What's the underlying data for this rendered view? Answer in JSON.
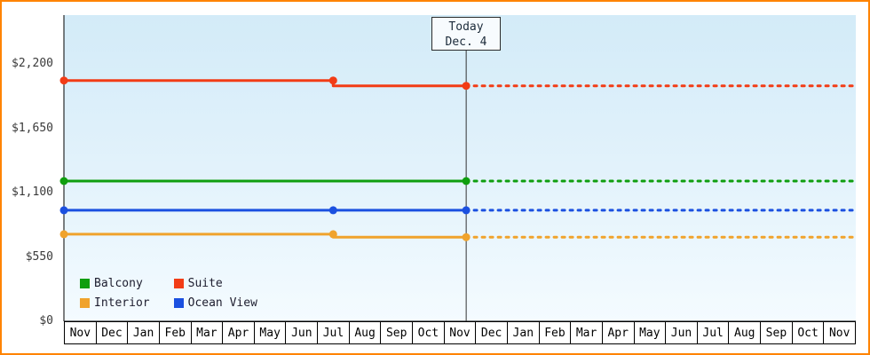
{
  "frame": {
    "border_color": "#ff8300",
    "background": "#ffffff"
  },
  "chart_data": {
    "type": "line",
    "title": "",
    "xlabel": "",
    "ylabel": "",
    "grid": false,
    "legend_position": "bottom-left",
    "x_categories": [
      "Nov",
      "Dec",
      "Jan",
      "Feb",
      "Mar",
      "Apr",
      "May",
      "Jun",
      "Jul",
      "Aug",
      "Sep",
      "Oct",
      "Nov",
      "Dec",
      "Jan",
      "Feb",
      "Mar",
      "Apr",
      "May",
      "Jun",
      "Jul",
      "Aug",
      "Sep",
      "Oct",
      "Nov"
    ],
    "ylim": [
      0,
      2620
    ],
    "y_ticks": [
      {
        "value": 2200,
        "label": "$2,200"
      },
      {
        "value": 1650,
        "label": "$1,650"
      },
      {
        "value": 1100,
        "label": "$1,100"
      },
      {
        "value": 550,
        "label": "$550"
      },
      {
        "value": 0,
        "label": "$0"
      }
    ],
    "today": {
      "x": 12.7,
      "label_line1": "Today",
      "label_line2": "Dec. 4"
    },
    "series": [
      {
        "name": "Suite",
        "color": "#f23c16",
        "forecast_price": 2015,
        "forecast_style": "dotted",
        "points": [
          {
            "x": 0,
            "price": 2060,
            "marker": true
          },
          {
            "x": 8.5,
            "price": 2060,
            "marker": true
          },
          {
            "x": 8.5,
            "price": 2015,
            "marker": false
          },
          {
            "x": 12.7,
            "price": 2015,
            "marker": true
          }
        ]
      },
      {
        "name": "Balcony",
        "color": "#0f9e0f",
        "forecast_price": 1200,
        "forecast_style": "dotted",
        "points": [
          {
            "x": 0,
            "price": 1200,
            "marker": true
          },
          {
            "x": 12.7,
            "price": 1200,
            "marker": true
          }
        ]
      },
      {
        "name": "Ocean View",
        "color": "#1b50e0",
        "forecast_price": 950,
        "forecast_style": "dotted",
        "points": [
          {
            "x": 0,
            "price": 950,
            "marker": true
          },
          {
            "x": 8.5,
            "price": 950,
            "marker": true
          },
          {
            "x": 12.7,
            "price": 950,
            "marker": true
          }
        ]
      },
      {
        "name": "Interior",
        "color": "#f0a32c",
        "forecast_price": 720,
        "forecast_style": "dotted",
        "points": [
          {
            "x": 0,
            "price": 745,
            "marker": true
          },
          {
            "x": 8.5,
            "price": 745,
            "marker": true
          },
          {
            "x": 8.5,
            "price": 720,
            "marker": false
          },
          {
            "x": 12.7,
            "price": 720,
            "marker": true
          }
        ]
      }
    ],
    "legend": [
      {
        "label": "Balcony",
        "color": "#0f9e0f"
      },
      {
        "label": "Suite",
        "color": "#f23c16"
      },
      {
        "label": "Interior",
        "color": "#f0a32c"
      },
      {
        "label": "Ocean View",
        "color": "#1b50e0"
      }
    ]
  }
}
